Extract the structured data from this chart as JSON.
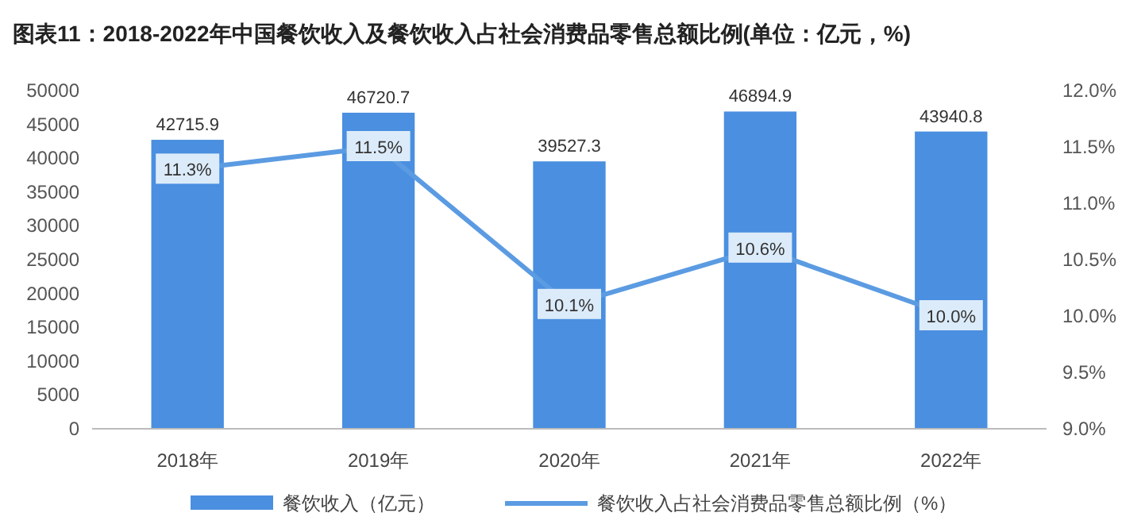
{
  "chart_data": {
    "type": "bar",
    "title": "图表11：2018-2022年中国餐饮收入及餐饮收入占社会消费品零售总额比例(单位：亿元，%)",
    "categories": [
      "2018年",
      "2019年",
      "2020年",
      "2021年",
      "2022年"
    ],
    "series": [
      {
        "name": "餐饮收入（亿元）",
        "color": "#4a8fe0",
        "values": [
          42715.9,
          46720.7,
          39527.3,
          46894.9,
          43940.8
        ],
        "value_labels": [
          "42715.9",
          "46720.7",
          "39527.3",
          "46894.9",
          "43940.8"
        ]
      },
      {
        "name": "餐饮收入占社会消费品零售总额比例（%）",
        "type": "line",
        "axis": "y2",
        "color": "#5b9be2",
        "marker": "square",
        "values": [
          11.3,
          11.5,
          10.1,
          10.6,
          10.0
        ],
        "value_labels": [
          "11.3%",
          "11.5%",
          "10.1%",
          "10.6%",
          "10.0%"
        ]
      }
    ],
    "ylim": [
      0,
      50000
    ],
    "yticks": [
      0,
      5000,
      10000,
      15000,
      20000,
      25000,
      30000,
      35000,
      40000,
      45000,
      50000
    ],
    "y2lim": [
      9,
      12
    ],
    "y2ticks": [
      {
        "value": 9,
        "label": "9.0%"
      },
      {
        "value": 9.5,
        "label": "9.5%"
      },
      {
        "value": 10,
        "label": "10.0%"
      },
      {
        "value": 10.5,
        "label": "10.5%"
      },
      {
        "value": 11,
        "label": "11.0%"
      },
      {
        "value": 11.5,
        "label": "11.5%"
      },
      {
        "value": 12,
        "label": "12.0%"
      }
    ],
    "grid": false,
    "legend": "bottom",
    "line_style": "solid"
  }
}
